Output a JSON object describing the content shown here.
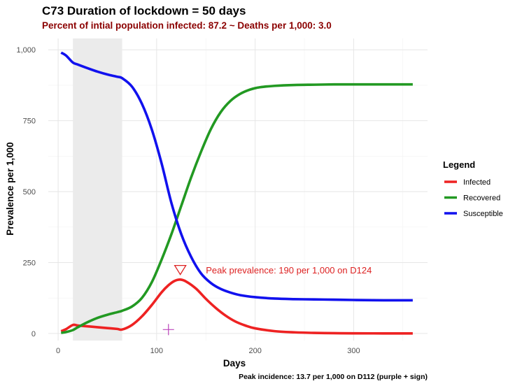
{
  "chart_data": {
    "type": "line",
    "title": "C73   Duration of lockdown = 50 days",
    "subtitle": "Percent of intial population infected: 87.2  ~   Deaths per 1,000: 3.0",
    "xlabel": "Days",
    "ylabel": "Prevalence per 1,000",
    "xlim": [
      -10,
      375
    ],
    "ylim": [
      -25,
      1040
    ],
    "x_ticks": [
      0,
      100,
      200,
      300
    ],
    "x_tick_labels": [
      "0",
      "100",
      "200",
      "300"
    ],
    "y_ticks": [
      0,
      250,
      500,
      750,
      1000
    ],
    "y_tick_labels": [
      "0",
      "250",
      "500",
      "750",
      "1,000"
    ],
    "grid": true,
    "lockdown_shade": {
      "start": 15,
      "end": 65
    },
    "legend": {
      "title": "Legend",
      "position": "right",
      "entries": [
        {
          "label": "Infected",
          "color": "#ee2222"
        },
        {
          "label": "Recovered",
          "color": "#229922"
        },
        {
          "label": "Susceptible",
          "color": "#1111ee"
        }
      ]
    },
    "series": [
      {
        "name": "Infected",
        "color": "#ee2222",
        "x": [
          3,
          8,
          15,
          20,
          30,
          40,
          50,
          60,
          65,
          75,
          85,
          95,
          105,
          112,
          118,
          124,
          130,
          140,
          150,
          160,
          170,
          180,
          190,
          200,
          220,
          240,
          260,
          280,
          300,
          330,
          360
        ],
        "y": [
          8,
          15,
          30,
          28,
          25,
          22,
          19,
          16,
          14,
          30,
          60,
          100,
          145,
          170,
          185,
          190,
          183,
          158,
          122,
          90,
          63,
          42,
          28,
          18,
          8,
          4,
          2,
          1,
          0.5,
          0.2,
          0
        ]
      },
      {
        "name": "Recovered",
        "color": "#229922",
        "x": [
          3,
          8,
          15,
          20,
          30,
          40,
          50,
          60,
          65,
          75,
          85,
          95,
          105,
          115,
          125,
          135,
          145,
          155,
          165,
          175,
          185,
          195,
          205,
          220,
          240,
          260,
          280,
          300,
          330,
          360
        ],
        "y": [
          2,
          5,
          12,
          22,
          40,
          55,
          66,
          75,
          80,
          95,
          125,
          180,
          260,
          350,
          450,
          550,
          640,
          720,
          780,
          820,
          845,
          860,
          868,
          873,
          876,
          877,
          878,
          878,
          878,
          878
        ]
      },
      {
        "name": "Susceptible",
        "color": "#1111ee",
        "x": [
          3,
          8,
          15,
          20,
          30,
          40,
          50,
          60,
          65,
          75,
          85,
          95,
          105,
          115,
          125,
          135,
          145,
          155,
          165,
          175,
          185,
          200,
          220,
          240,
          260,
          280,
          300,
          330,
          360
        ],
        "y": [
          990,
          980,
          955,
          948,
          935,
          923,
          913,
          905,
          900,
          870,
          810,
          720,
          600,
          460,
          350,
          270,
          212,
          178,
          157,
          144,
          135,
          128,
          123,
          121,
          120,
          119,
          118,
          117,
          117
        ]
      }
    ],
    "annotations": [
      {
        "type": "triangle-marker",
        "x": 124,
        "y": 225,
        "color": "#dd2222"
      },
      {
        "type": "text",
        "text": "Peak prevalence: 190 per 1,000 on D124",
        "x": 150,
        "y": 222,
        "color": "#dd2222"
      },
      {
        "type": "plus-marker",
        "x": 112,
        "y": 13.7,
        "color": "#bb44bb"
      }
    ],
    "caption": "Peak incidence:  13.7 per 1,000 on D112 (purple + sign)"
  }
}
